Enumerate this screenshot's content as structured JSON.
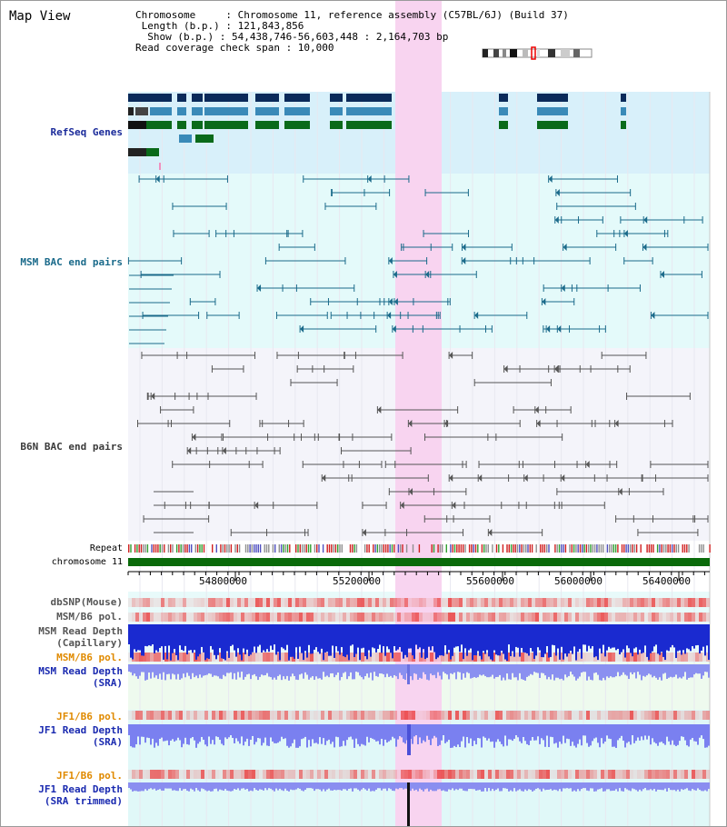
{
  "header": {
    "title": "Map View",
    "chromosome_line": "Chromosome     : Chromosome 11, reference assembly (C57BL/6J) (Build 37)",
    "length_line": " Length (b.p.) : 121,843,856",
    "show_line": "  Show (b.p.) : 54,438,746-56,603,448 : 2,164,703 bp",
    "span_line": "Read coverage check span : 10,000"
  },
  "tracks": {
    "refseq": "RefSeq Genes",
    "msm_bac": "MSM BAC end pairs",
    "b6n_bac": "B6N BAC end pairs",
    "repeat": "Repeat",
    "chromosome": "chromosome 11",
    "dbsnp": "dbSNP(Mouse)",
    "msm_pol": "MSM/B6 pol.",
    "msm_depth_cap_1": "MSM Read Depth",
    "msm_depth_cap_2": "(Capillary)",
    "msm_pol_2": "MSM/B6 pol.",
    "msm_sra_1": "MSM Read Depth",
    "msm_sra_2": "(SRA)",
    "jf1_pol": "JF1/B6 pol.",
    "jf1_sra_1": "JF1 Read Depth",
    "jf1_sra_2": "(SRA)",
    "jf1_pol_2": "JF1/B6 pol.",
    "jf1_trim_1": "JF1 Read Depth",
    "jf1_trim_2": "(SRA trimmed)"
  },
  "axis": {
    "ticks": [
      "54800000",
      "55200000",
      "55600000",
      "56000000",
      "56400000"
    ]
  },
  "colors": {
    "highlight": "#f8d4f0",
    "refseq_bg": "#d8f0fa",
    "msm_bg": "#e4fafa",
    "b6n_bg": "#f4f4fa",
    "refseq_label": "#1a2a9a",
    "msm_label": "#1a6a8a",
    "b6n_label": "#3a3a3a",
    "pol_label": "#e08a00",
    "depth_label": "#1a2ab0"
  }
}
